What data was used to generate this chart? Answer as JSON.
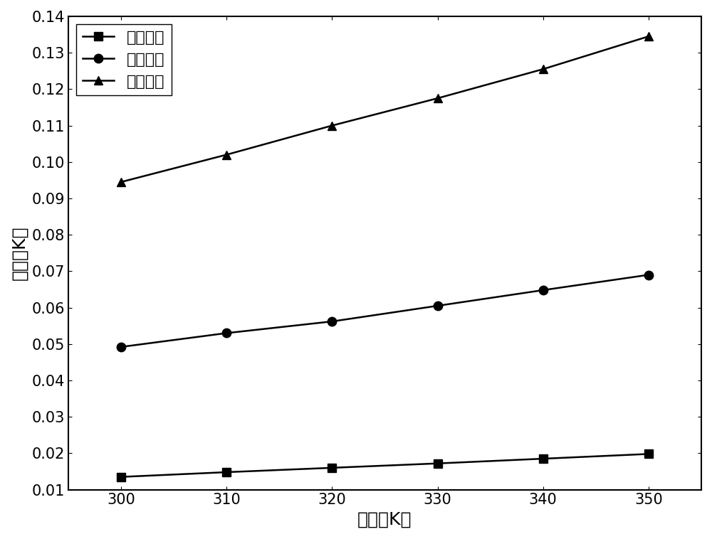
{
  "x": [
    300,
    310,
    320,
    330,
    340,
    350
  ],
  "series": [
    {
      "label": "一次谐波",
      "marker": "s",
      "values": [
        0.0135,
        0.0148,
        0.016,
        0.0172,
        0.0185,
        0.0198
      ]
    },
    {
      "label": "三次谐波",
      "marker": "o",
      "values": [
        0.0492,
        0.053,
        0.0562,
        0.0605,
        0.0648,
        0.069
      ]
    },
    {
      "label": "五次谐波",
      "marker": "^",
      "values": [
        0.0945,
        0.102,
        0.11,
        0.1175,
        0.1255,
        0.1345
      ]
    }
  ],
  "xlabel": "温度（K）",
  "ylabel": "误差（K）",
  "xlim": [
    295,
    355
  ],
  "ylim": [
    0.01,
    0.14
  ],
  "yticks": [
    0.01,
    0.02,
    0.03,
    0.04,
    0.05,
    0.06,
    0.07,
    0.08,
    0.09,
    0.1,
    0.11,
    0.12,
    0.13,
    0.14
  ],
  "xticks": [
    300,
    310,
    320,
    330,
    340,
    350
  ],
  "line_color": "#000000",
  "marker_size": 9,
  "line_width": 1.8,
  "legend_fontsize": 16,
  "axis_label_fontsize": 18,
  "tick_fontsize": 15,
  "background_color": "#ffffff",
  "grid": false
}
